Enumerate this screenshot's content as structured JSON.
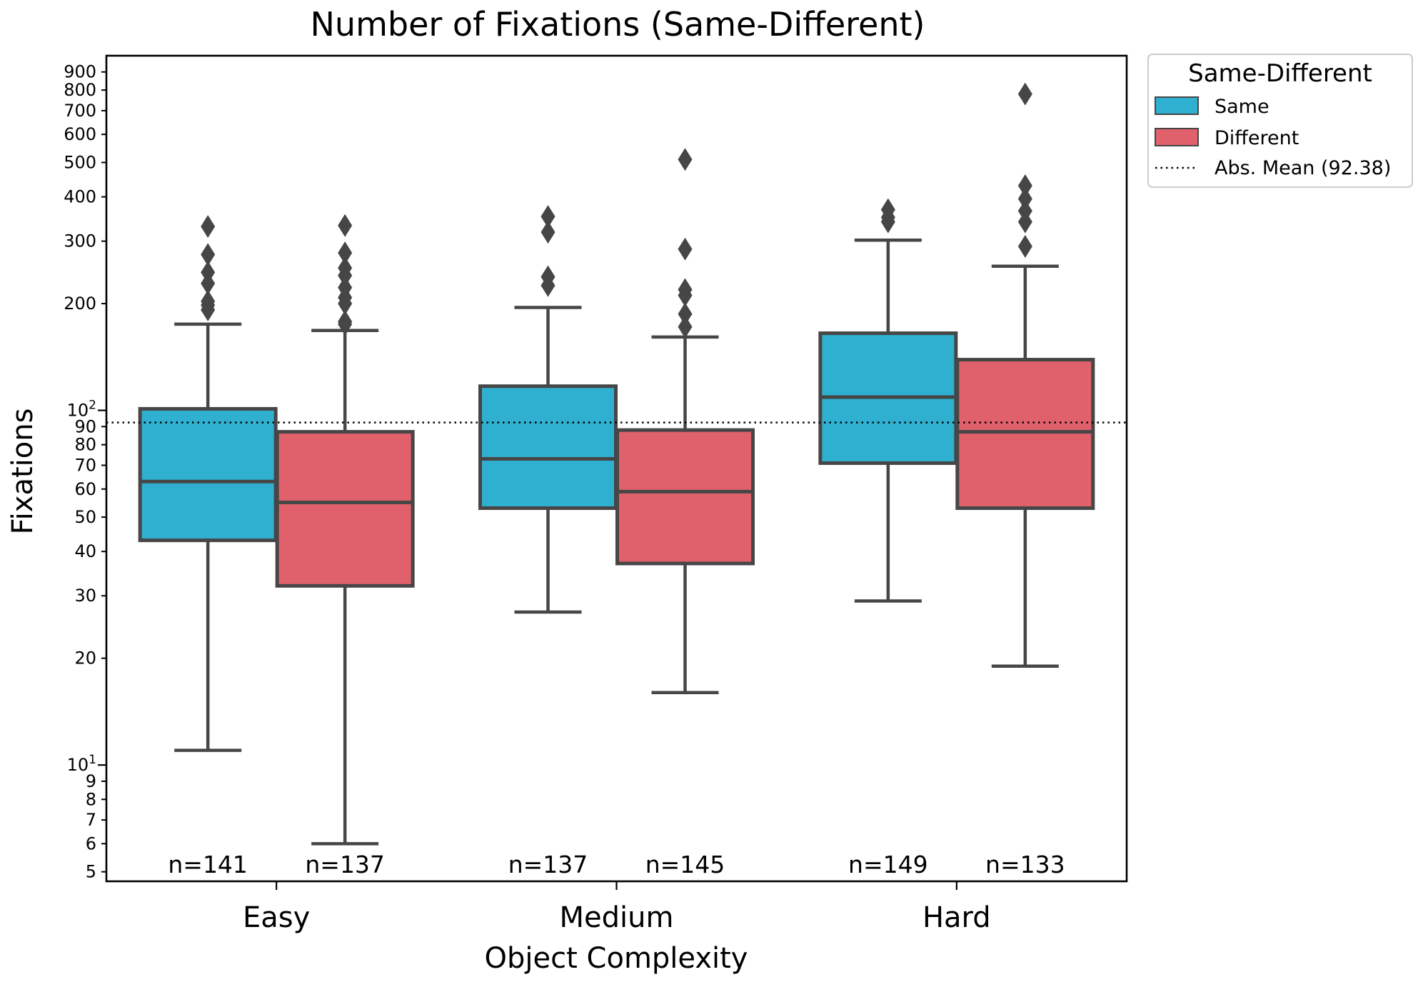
{
  "chart_data": {
    "type": "box",
    "title": "Number of Fixations (Same-Different)",
    "xlabel": "Object Complexity",
    "ylabel": "Fixations",
    "yscale": "log",
    "ylim": [
      4.7,
      1000
    ],
    "categories": [
      "Easy",
      "Medium",
      "Hard"
    ],
    "yticks": {
      "major": [
        {
          "value": 10,
          "base": "10",
          "exp": "1"
        },
        {
          "value": 100,
          "base": "10",
          "exp": "2"
        }
      ],
      "minor": [
        {
          "value": 5,
          "label": "5"
        },
        {
          "value": 6,
          "label": "6"
        },
        {
          "value": 7,
          "label": "7"
        },
        {
          "value": 8,
          "label": "8"
        },
        {
          "value": 9,
          "label": "9"
        },
        {
          "value": 20,
          "label": "20"
        },
        {
          "value": 30,
          "label": "30"
        },
        {
          "value": 40,
          "label": "40"
        },
        {
          "value": 50,
          "label": "50"
        },
        {
          "value": 60,
          "label": "60"
        },
        {
          "value": 70,
          "label": "70"
        },
        {
          "value": 80,
          "label": "80"
        },
        {
          "value": 90,
          "label": "90"
        },
        {
          "value": 200,
          "label": "200"
        },
        {
          "value": 300,
          "label": "300"
        },
        {
          "value": 400,
          "label": "400"
        },
        {
          "value": 500,
          "label": "500"
        },
        {
          "value": 600,
          "label": "600"
        },
        {
          "value": 700,
          "label": "700"
        },
        {
          "value": 800,
          "label": "800"
        },
        {
          "value": 900,
          "label": "900"
        }
      ]
    },
    "series": [
      {
        "name": "Same",
        "color": "#2fb0d0",
        "boxes": [
          {
            "category": "Easy",
            "whisker_low": 11,
            "q1": 43,
            "median": 63,
            "q3": 101,
            "whisker_high": 175,
            "n_label": "n=141",
            "outliers": [
              192,
              198,
              203,
              228,
              245,
              275,
              330
            ]
          },
          {
            "category": "Medium",
            "whisker_low": 27,
            "q1": 53,
            "median": 73,
            "q3": 117,
            "whisker_high": 195,
            "n_label": "n=137",
            "outliers": [
              225,
              238,
              318,
              352
            ]
          },
          {
            "category": "Hard",
            "whisker_low": 29,
            "q1": 71,
            "median": 109,
            "q3": 165,
            "whisker_high": 302,
            "n_label": "n=149",
            "outliers": [
              340,
              350,
              368
            ]
          }
        ]
      },
      {
        "name": "Different",
        "color": "#e0616b",
        "boxes": [
          {
            "category": "Easy",
            "whisker_low": 6,
            "q1": 32,
            "median": 55,
            "q3": 87,
            "whisker_high": 168,
            "n_label": "n=137",
            "outliers": [
              175,
              178,
              200,
              208,
              222,
              240,
              252,
              278,
              332
            ]
          },
          {
            "category": "Medium",
            "whisker_low": 16,
            "q1": 37,
            "median": 59,
            "q3": 88,
            "whisker_high": 161,
            "n_label": "n=145",
            "outliers": [
              172,
              187,
              211,
              219,
              285,
              510
            ]
          },
          {
            "category": "Hard",
            "whisker_low": 19,
            "q1": 53,
            "median": 87,
            "q3": 139,
            "whisker_high": 255,
            "n_label": "n=133",
            "outliers": [
              290,
              340,
              365,
              395,
              430,
              780
            ]
          }
        ]
      }
    ],
    "reference_line": {
      "label": "Abs. Mean (92.38)",
      "value": 92.38,
      "style": "dotted"
    },
    "legend": {
      "title": "Same-Different",
      "placement": "outside-top-right"
    },
    "grid": false
  }
}
